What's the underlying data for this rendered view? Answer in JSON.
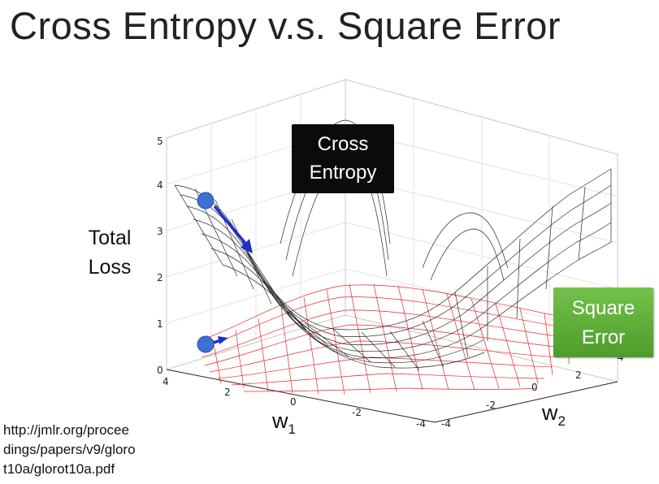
{
  "slide": {
    "title": "Cross Entropy v.s. Square Error"
  },
  "figure": {
    "y_axis_label": "Total\nLoss",
    "z_ticks": [
      "0",
      "1",
      "2",
      "3",
      "4",
      "5"
    ],
    "w1_ticks": [
      "4",
      "2",
      "0",
      "-2",
      "-4"
    ],
    "w2_ticks": [
      "-4",
      "-2",
      "0",
      "2",
      "4"
    ],
    "w1_label": "w",
    "w1_subscript": "1",
    "w2_label": "w",
    "w2_subscript": "2",
    "cross_entropy_label": "Cross\nEntropy",
    "square_error_label": "Square\nError",
    "colors": {
      "cross_entropy_mesh": "#000000",
      "square_error_mesh": "#e60000",
      "marker": "#3f6fd1",
      "arrow": "#1f2fd0",
      "cross_entropy_box": "#0b0b0b",
      "square_error_box": "#5aaa38"
    }
  },
  "reference": {
    "url": "http://jmlr.org/proceedings/papers/v9/glorot10a/glorot10a.pdf",
    "lines": [
      "http://jmlr.org/procee",
      "dings/papers/v9/gloro",
      "t10a/glorot10a.pdf"
    ]
  }
}
